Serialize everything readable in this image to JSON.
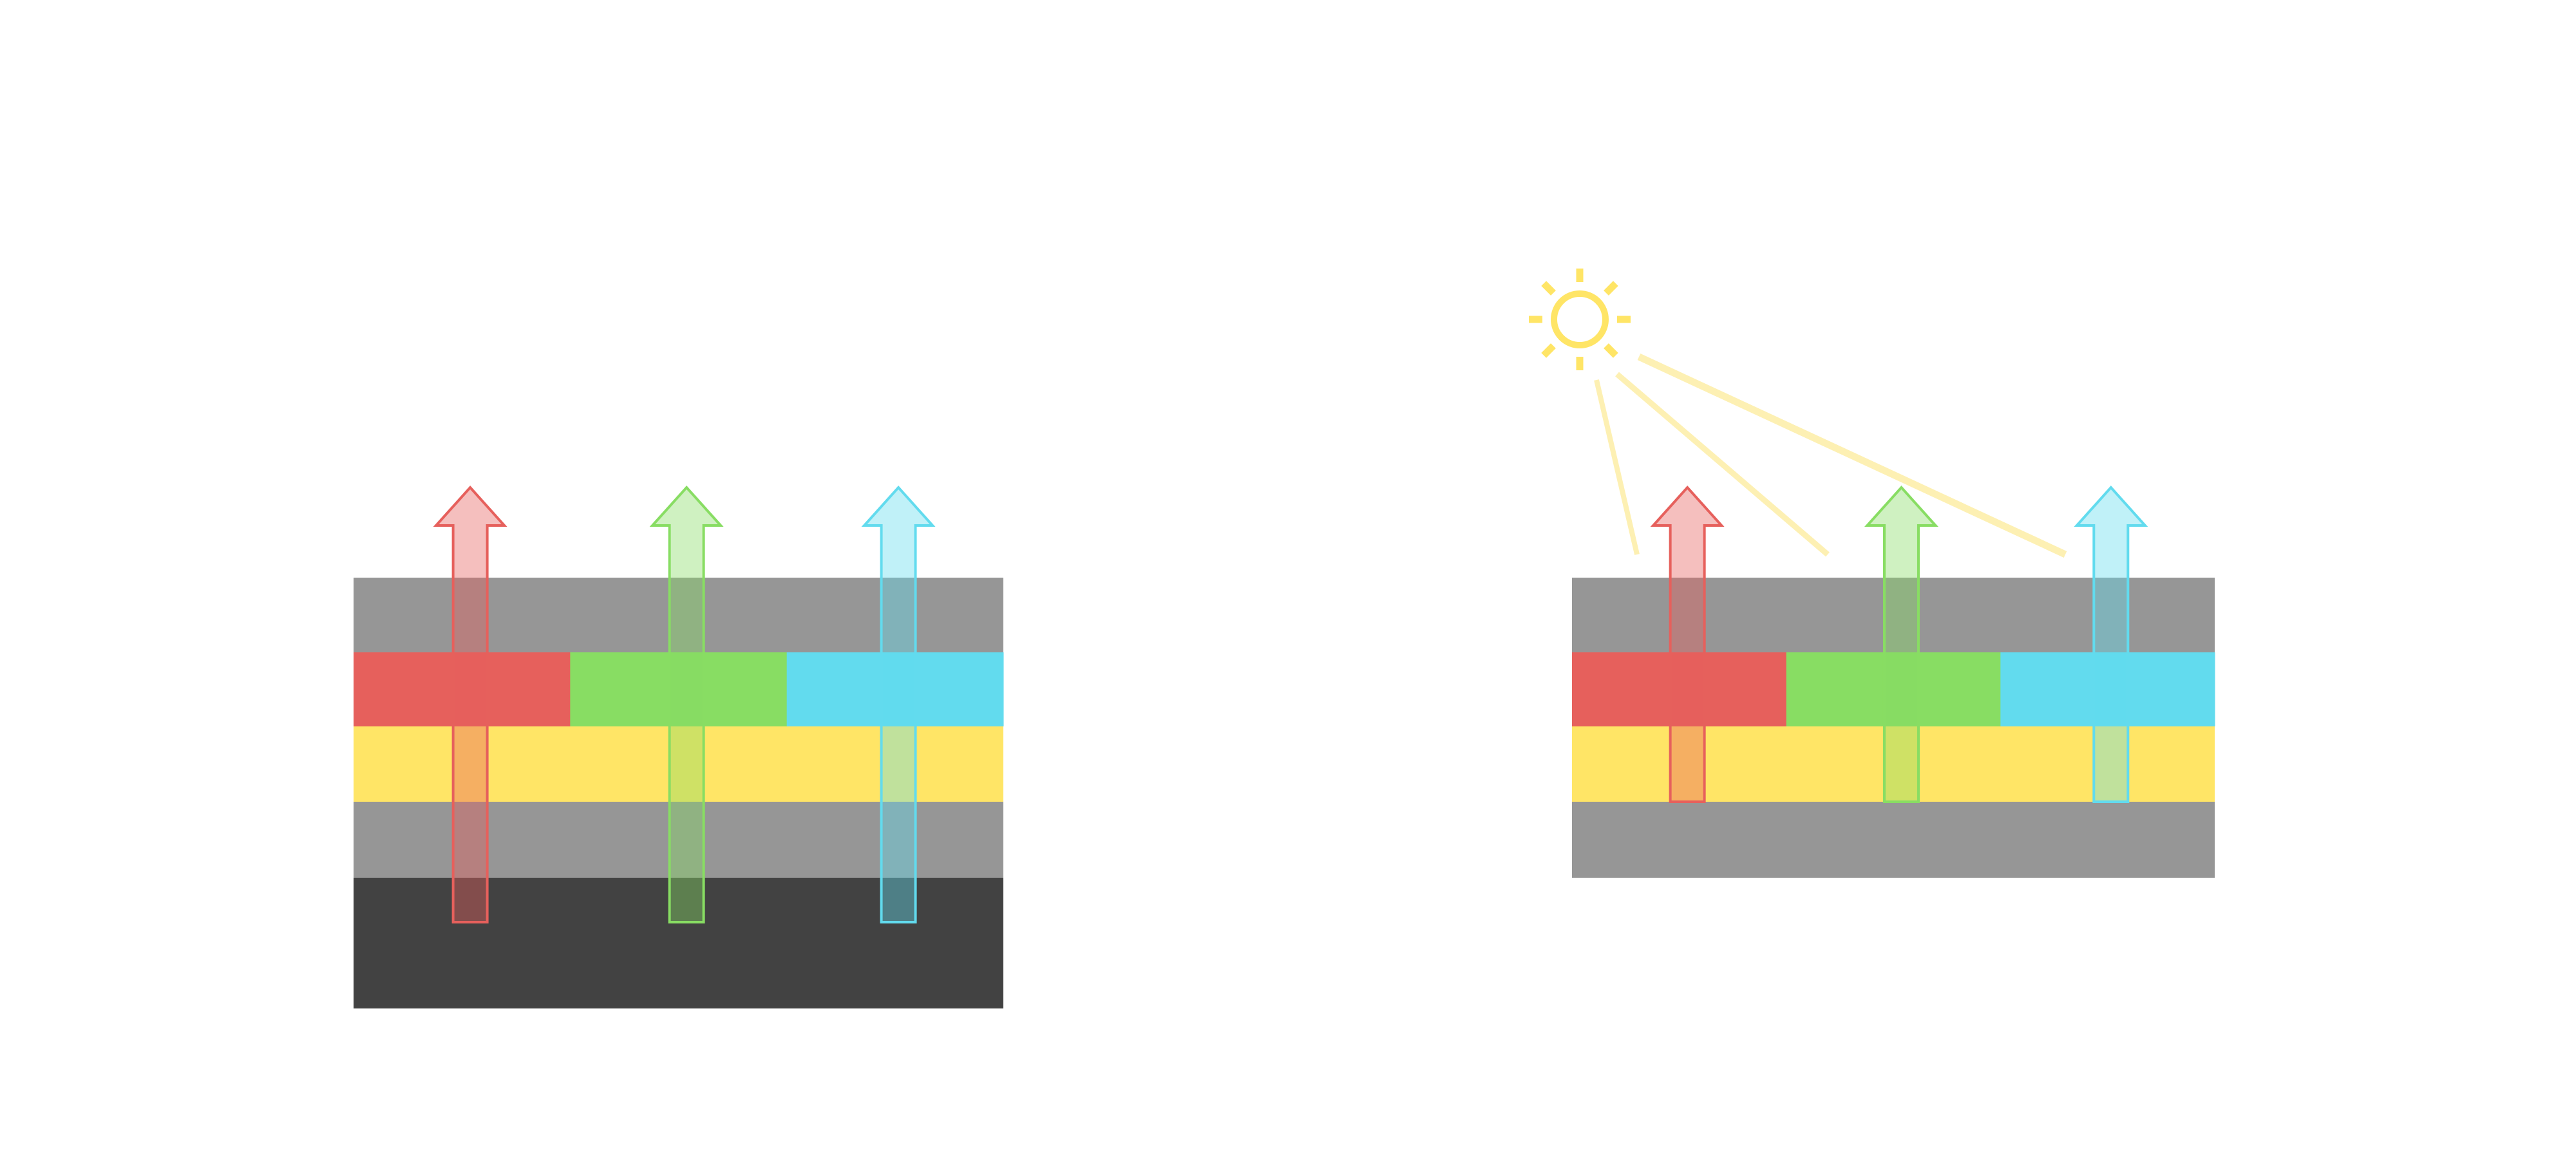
{
  "diagram": {
    "colors": {
      "gray_layer": "#969696",
      "dark_layer": "#424242",
      "red": "#e6605c",
      "green": "#88dd63",
      "cyan": "#62dbee",
      "yellow": "#ffe566",
      "sunlight": "#fdf0b3"
    },
    "left_stack": {
      "layers": [
        "gray_layer",
        "color_filter",
        "yellow",
        "gray_layer",
        "dark_layer"
      ],
      "arrows": [
        "red",
        "green",
        "cyan"
      ]
    },
    "right_stack": {
      "layers": [
        "gray_layer",
        "color_filter",
        "yellow",
        "gray_layer"
      ],
      "arrows": [
        "red",
        "green",
        "cyan"
      ],
      "icons": [
        "sun-icon"
      ],
      "sunlight_rays": 3
    }
  }
}
